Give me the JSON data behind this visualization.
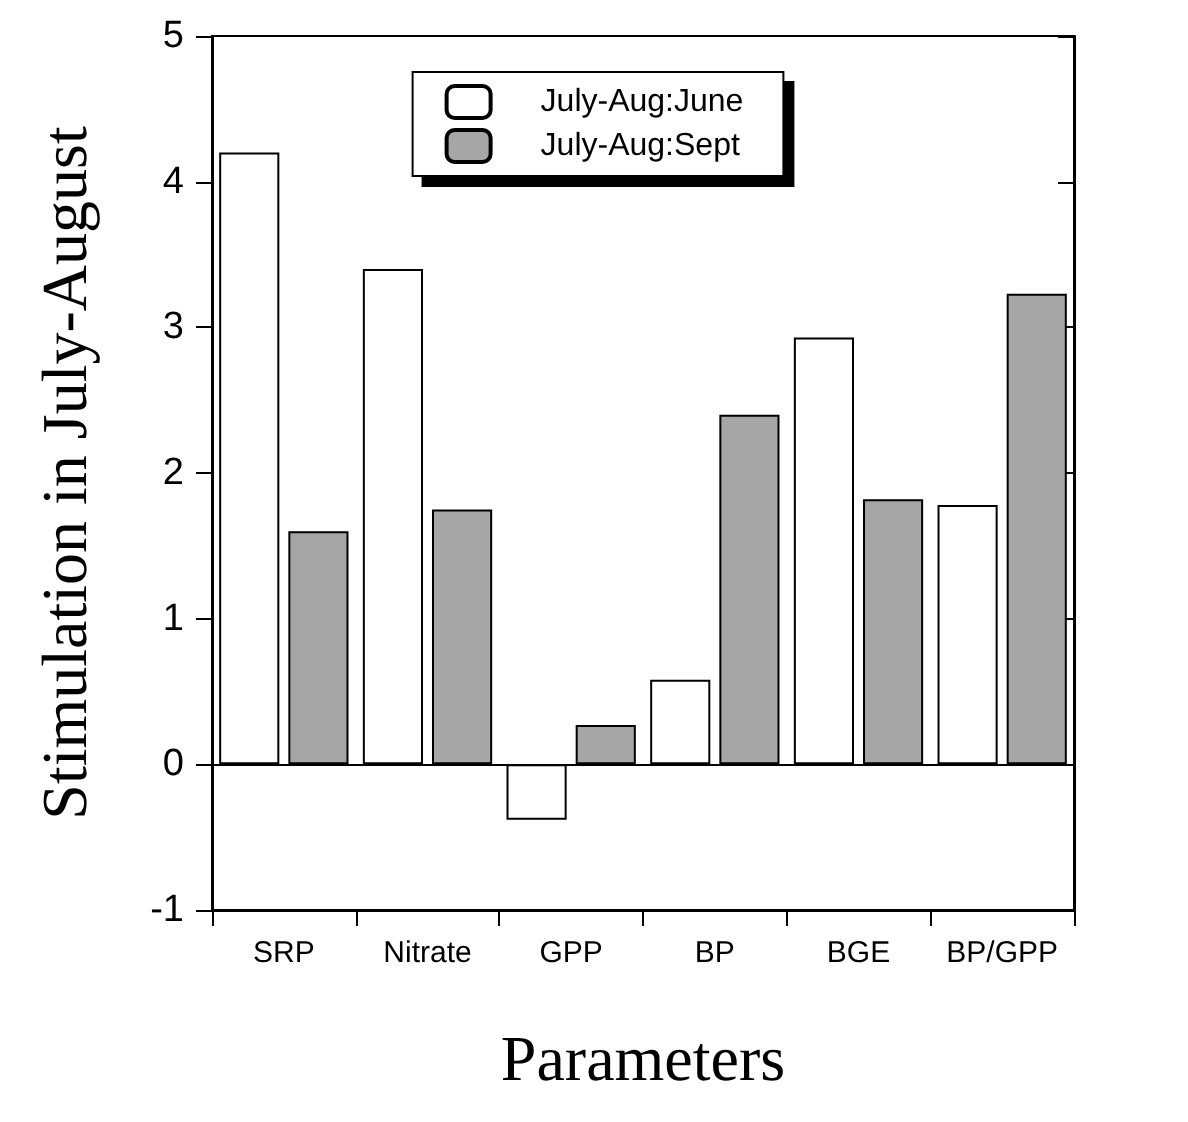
{
  "chart_data": {
    "type": "bar",
    "xlabel": "Parameters",
    "ylabel": "Stimulation in July-August",
    "categories": [
      "SRP",
      "Nitrate",
      "GPP",
      "BP",
      "BGE",
      "BP/GPP"
    ],
    "series": [
      {
        "name": "July-Aug:June",
        "color": "#ffffff",
        "values": [
          4.2,
          3.4,
          -0.38,
          0.58,
          2.93,
          1.78
        ]
      },
      {
        "name": "July-Aug:Sept",
        "color": "#a6a6a6",
        "values": [
          1.6,
          1.75,
          0.27,
          2.4,
          1.82,
          3.23
        ]
      }
    ],
    "ylim": [
      -1,
      5
    ],
    "yticks": [
      -1,
      0,
      1,
      2,
      3,
      4,
      5
    ],
    "grid": false,
    "legend": "top",
    "ref_lines": [
      {
        "axis": "y",
        "value": 0,
        "color": "#000000"
      }
    ]
  }
}
